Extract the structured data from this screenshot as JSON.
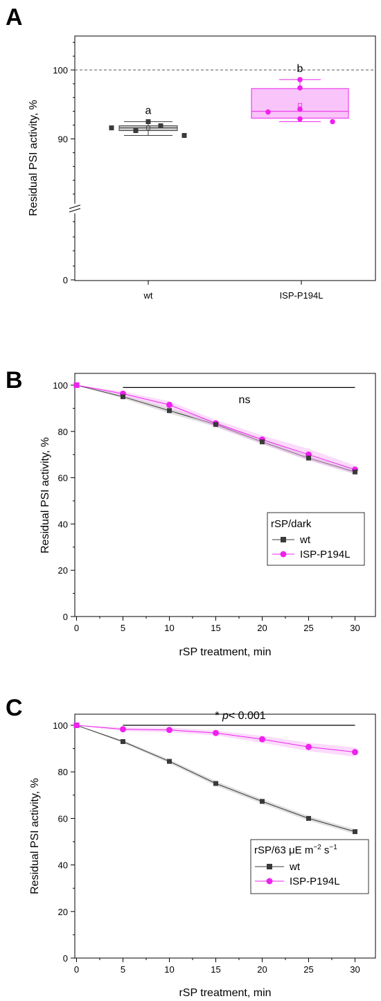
{
  "colors": {
    "wt": "#3a3a3a",
    "mutant": "#ee22ee",
    "mutant_fill": "#f7b0f7",
    "wt_fill": "#b8b8b8"
  },
  "chart_data": [
    {
      "panel": "A",
      "type": "box",
      "ylabel": "Residual PSI activity, %",
      "yticks": [
        0,
        90,
        100
      ],
      "ybreak": true,
      "reference_line": 100,
      "categories": [
        "wt",
        "ISP-P194L"
      ],
      "series": [
        {
          "name": "wt",
          "letter": "a",
          "points": [
            91.6,
            91.2,
            92.5,
            91.9,
            90.5
          ],
          "box": {
            "q1": 91.2,
            "median": 91.6,
            "q3": 91.9,
            "whisker_low": 90.5,
            "whisker_high": 92.5,
            "mean": 91.6
          }
        },
        {
          "name": "ISP-P194L",
          "letter": "b",
          "points": [
            93.9,
            92.9,
            94.3,
            97.4,
            98.6,
            92.5
          ],
          "box": {
            "q1": 93.0,
            "median": 94.0,
            "q3": 97.3,
            "whisker_low": 92.5,
            "whisker_high": 98.6,
            "mean": 94.9
          }
        }
      ]
    },
    {
      "panel": "B",
      "type": "line",
      "xlabel": "rSP treatment, min",
      "ylabel": "Residual PSI activity, %",
      "xlim": [
        -1,
        32
      ],
      "ylim": [
        0,
        105
      ],
      "xticks": [
        0,
        5,
        10,
        15,
        20,
        25,
        30
      ],
      "yticks": [
        0,
        20,
        40,
        60,
        80,
        100
      ],
      "annotation": {
        "text": "ns",
        "x_from": 5,
        "x_to": 30,
        "y": 99
      },
      "legend": {
        "title": "rSP/dark",
        "position": "right"
      },
      "x": [
        0,
        5,
        10,
        15,
        20,
        25,
        30
      ],
      "series": [
        {
          "name": "wt",
          "values": [
            100,
            95,
            89,
            83,
            75.5,
            68.5,
            62.5
          ]
        },
        {
          "name": "ISP-P194L",
          "values": [
            100,
            96.3,
            91.5,
            83.5,
            76.5,
            70,
            63.5
          ]
        }
      ]
    },
    {
      "panel": "C",
      "type": "line",
      "xlabel": "rSP treatment, min",
      "ylabel": "Residual PSI activity, %",
      "xlim": [
        -1,
        32
      ],
      "ylim": [
        0,
        105
      ],
      "xticks": [
        0,
        5,
        10,
        15,
        20,
        25,
        30
      ],
      "yticks": [
        0,
        20,
        40,
        60,
        80,
        100
      ],
      "annotation": {
        "text": "* p< 0.001",
        "star": "* ",
        "p": "p",
        "rest": "< 0.001",
        "x_from": 5,
        "x_to": 30,
        "y": 100
      },
      "legend": {
        "title_main": "rSP/63 μE m",
        "sup1": "−2",
        "mid": " s",
        "sup2": "−1",
        "position": "right"
      },
      "x": [
        0,
        5,
        10,
        15,
        20,
        25,
        30
      ],
      "series": [
        {
          "name": "wt",
          "values": [
            100,
            93,
            84.5,
            75,
            67.3,
            60,
            54.3
          ]
        },
        {
          "name": "ISP-P194L",
          "values": [
            100,
            98.3,
            98,
            96.7,
            94,
            90.7,
            88.5
          ]
        }
      ]
    }
  ]
}
